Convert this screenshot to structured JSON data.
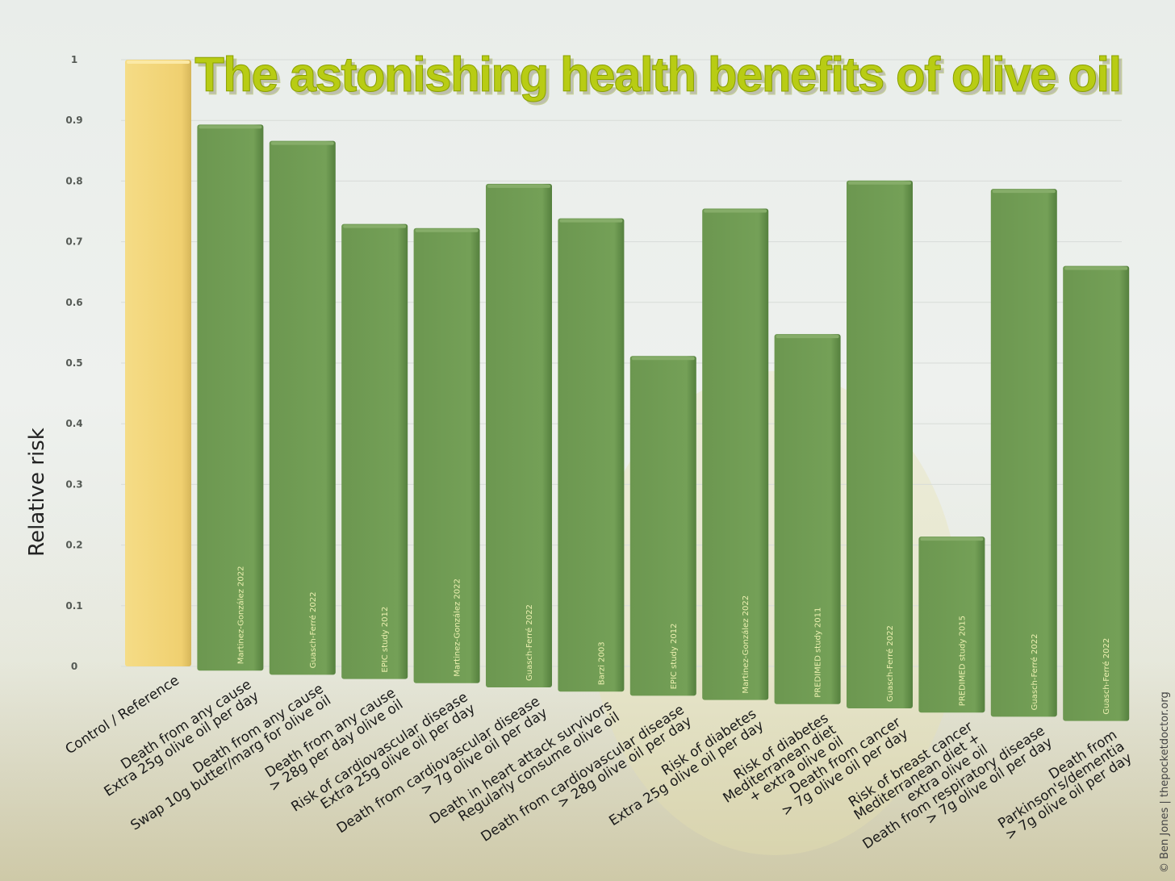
{
  "chart_data": {
    "type": "bar",
    "title": "The astonishing health benefits of olive oil",
    "ylabel": "Relative risk",
    "ylim": [
      0,
      1
    ],
    "yticks": [
      "0",
      "0.1",
      "0.2",
      "0.3",
      "0.4",
      "0.5",
      "0.6",
      "0.7",
      "0.8",
      "0.9",
      "1"
    ],
    "grid": true,
    "colors": {
      "reference": "#f2d57a",
      "bars": "#6f9a52",
      "title": "#b8cc14"
    },
    "categories": [
      [
        "Control / Reference"
      ],
      [
        "Death from any cause",
        "Extra 25g olive oil per day"
      ],
      [
        "Death from any cause",
        "Swap 10g butter/marg for olive oil"
      ],
      [
        "Death from any cause",
        "> 28g per day olive oil"
      ],
      [
        "Risk of cardiovascular disease",
        "Extra 25g olive oil per day"
      ],
      [
        "Death from cardiovascular disease",
        "> 7g olive oil per day"
      ],
      [
        "Death in heart attack survivors",
        "Regularly consume olive oil"
      ],
      [
        "Death from cardiovascular disease",
        "> 28g olive oil per day"
      ],
      [
        "Risk of diabetes",
        "Extra 25g olive oil per day"
      ],
      [
        "Risk of diabetes",
        "Mediterranean diet",
        "+ extra olive oil"
      ],
      [
        "Death from cancer",
        "> 7g olive oil per day"
      ],
      [
        "Risk of breast cancer",
        "Mediterranean diet +",
        "extra olive oil"
      ],
      [
        "Death from respiratory disease",
        "> 7g olive oil per day"
      ],
      [
        "Death from",
        "Parkinson's/dementia",
        "> 7g olive oil per day"
      ]
    ],
    "values": [
      1.0,
      0.9,
      0.88,
      0.75,
      0.75,
      0.83,
      0.78,
      0.56,
      0.81,
      0.61,
      0.87,
      0.29,
      0.87,
      0.75
    ],
    "sources": [
      "",
      "Martinez-González 2022",
      "Guasch-Ferré 2022",
      "EPIC study 2012",
      "Martinez-González 2022",
      "Guasch-Ferré 2022",
      "Barzi 2003",
      "EPIC study 2012",
      "Martinez-González 2022",
      "PREDIMED study 2011",
      "Guasch-Ferré 2022",
      "PREDIMED study 2015",
      "Guasch-Ferré 2022",
      "Guasch-Ferré 2022"
    ]
  },
  "credit": "© Ben Jones | thepocketdoctor.org"
}
